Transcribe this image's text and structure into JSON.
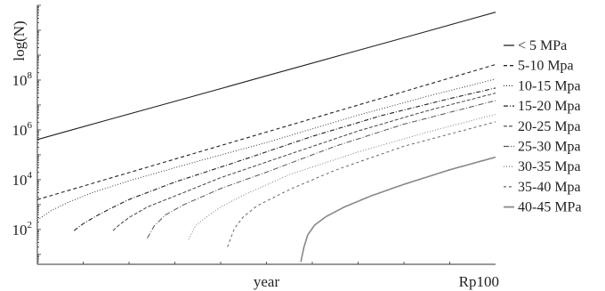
{
  "chart_data": {
    "type": "line",
    "title": "",
    "xlabel": "",
    "ylabel": "log(N)",
    "y_scale": "log",
    "ylim": [
      4,
      100000000000
    ],
    "x_ticks": [
      {
        "label": "year",
        "value": 0.5
      },
      {
        "label": "Rp100",
        "value": 1.0
      }
    ],
    "y_ticks": [
      {
        "base": "10",
        "exp": "2",
        "value": 100
      },
      {
        "base": "10",
        "exp": "4",
        "value": 10000
      },
      {
        "base": "10",
        "exp": "6",
        "value": 1000000
      },
      {
        "base": "10",
        "exp": "8",
        "value": 100000000
      }
    ],
    "legend_placement": "right",
    "series": [
      {
        "name": "< 5 MPa",
        "dash": "",
        "color": "#222222",
        "width": 1.1,
        "points": [
          [
            0.0,
            410000
          ],
          [
            1.0,
            53000000000
          ]
        ]
      },
      {
        "name": "5-10 Mpa",
        "dash": "4,3",
        "color": "#222222",
        "width": 1.1,
        "points": [
          [
            0.0,
            1580
          ],
          [
            1.0,
            420000000
          ]
        ]
      },
      {
        "name": "10-15 Mpa",
        "dash": "1,2",
        "color": "#333333",
        "width": 1.0,
        "points": [
          [
            0.0,
            240
          ],
          [
            0.03,
            570
          ],
          [
            0.07,
            1300
          ],
          [
            0.12,
            3000
          ],
          [
            0.2,
            9000
          ],
          [
            0.35,
            55000
          ],
          [
            0.5,
            310000
          ],
          [
            0.7,
            3900000
          ],
          [
            0.85,
            22000000
          ],
          [
            1.0,
            110000000
          ]
        ]
      },
      {
        "name": "15-20 Mpa",
        "dash": "5,2,1,2",
        "color": "#222222",
        "width": 1.1,
        "points": [
          [
            0.08,
            90
          ],
          [
            0.1,
            170
          ],
          [
            0.13,
            360
          ],
          [
            0.16,
            700
          ],
          [
            0.2,
            1600
          ],
          [
            0.3,
            8000
          ],
          [
            0.45,
            64000
          ],
          [
            0.6,
            550000
          ],
          [
            0.75,
            3700000
          ],
          [
            0.9,
            18000000
          ],
          [
            1.0,
            48000000
          ]
        ]
      },
      {
        "name": "20-25 Mpa",
        "dash": "4,2",
        "color": "#444444",
        "width": 1.0,
        "points": [
          [
            0.165,
            90
          ],
          [
            0.18,
            160
          ],
          [
            0.2,
            300
          ],
          [
            0.24,
            800
          ],
          [
            0.3,
            2200
          ],
          [
            0.4,
            12000
          ],
          [
            0.55,
            105000
          ],
          [
            0.7,
            900000
          ],
          [
            0.85,
            5800000
          ],
          [
            1.0,
            30000000
          ]
        ]
      },
      {
        "name": "25-30 Mpa",
        "dash": "6,2,1,2",
        "color": "#555555",
        "width": 1.0,
        "points": [
          [
            0.24,
            45
          ],
          [
            0.255,
            140
          ],
          [
            0.28,
            390
          ],
          [
            0.32,
            1000
          ],
          [
            0.4,
            4400
          ],
          [
            0.5,
            20000
          ],
          [
            0.65,
            220000
          ],
          [
            0.8,
            1700000
          ],
          [
            1.0,
            15000000
          ]
        ]
      },
      {
        "name": "30-35 Mpa",
        "dash": "1,2",
        "color": "#888888",
        "width": 1.1,
        "points": [
          [
            0.33,
            40
          ],
          [
            0.345,
            140
          ],
          [
            0.37,
            330
          ],
          [
            0.4,
            800
          ],
          [
            0.45,
            2400
          ],
          [
            0.55,
            16000
          ],
          [
            0.7,
            130000
          ],
          [
            0.85,
            800000
          ],
          [
            1.0,
            4200000
          ]
        ]
      },
      {
        "name": "35-40 Mpa",
        "dash": "3,3",
        "color": "#666666",
        "width": 1.0,
        "points": [
          [
            0.415,
            20
          ],
          [
            0.43,
            110
          ],
          [
            0.45,
            330
          ],
          [
            0.48,
            900
          ],
          [
            0.55,
            4000
          ],
          [
            0.65,
            24000
          ],
          [
            0.8,
            220000
          ],
          [
            1.0,
            2100000
          ]
        ]
      },
      {
        "name": "40-45 MPa",
        "dash": "",
        "color": "#888888",
        "width": 1.6,
        "points": [
          [
            0.575,
            5
          ],
          [
            0.582,
            20
          ],
          [
            0.59,
            60
          ],
          [
            0.605,
            150
          ],
          [
            0.63,
            330
          ],
          [
            0.67,
            800
          ],
          [
            0.73,
            2300
          ],
          [
            0.8,
            6500
          ],
          [
            0.9,
            25000
          ],
          [
            1.0,
            80000
          ]
        ]
      }
    ]
  }
}
